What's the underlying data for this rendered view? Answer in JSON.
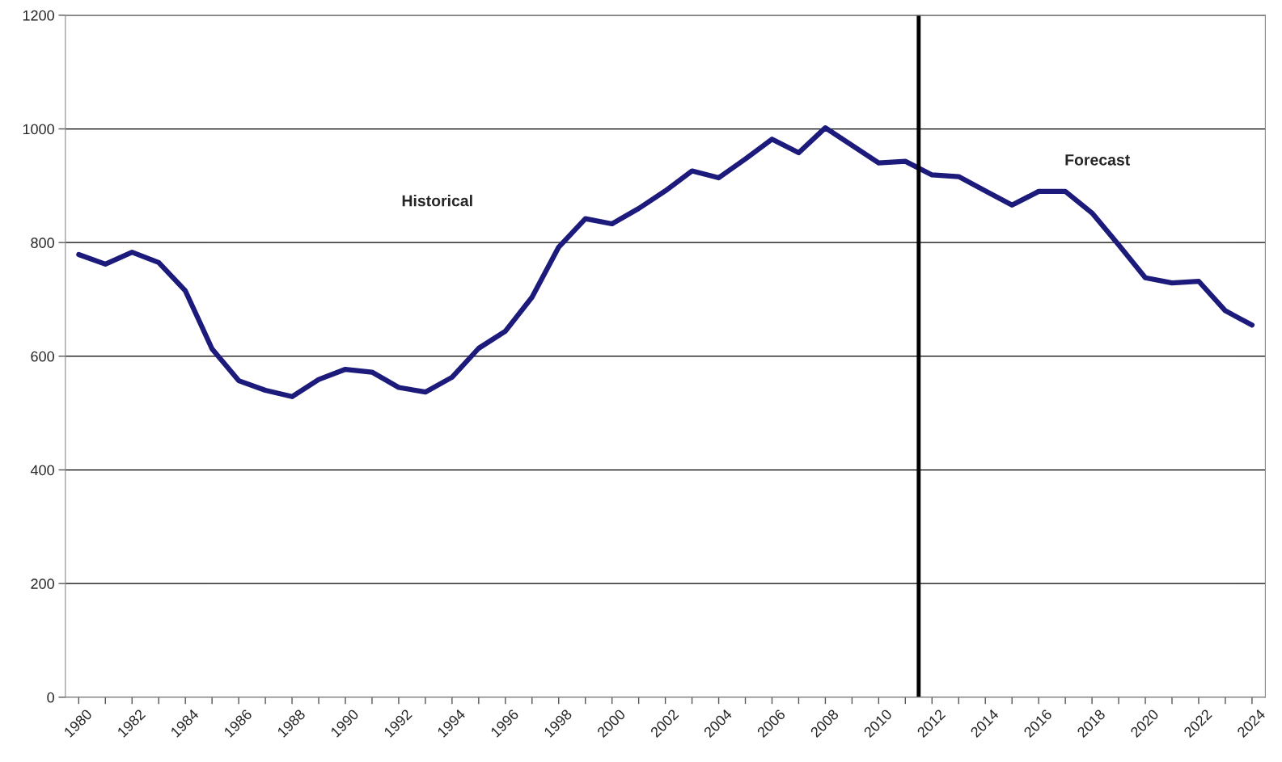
{
  "chart_data": {
    "type": "line",
    "x": [
      1980,
      1981,
      1982,
      1983,
      1984,
      1985,
      1986,
      1987,
      1988,
      1989,
      1990,
      1991,
      1992,
      1993,
      1994,
      1995,
      1996,
      1997,
      1998,
      1999,
      2000,
      2001,
      2002,
      2003,
      2004,
      2005,
      2006,
      2007,
      2008,
      2009,
      2010,
      2011,
      2012,
      2013,
      2014,
      2015,
      2016,
      2017,
      2018,
      2019,
      2020,
      2021,
      2022,
      2023,
      2024
    ],
    "series": [
      {
        "color": "#1c1a7a",
        "values": [
          779,
          762,
          783,
          765,
          715,
          613,
          557,
          540,
          529,
          559,
          577,
          572,
          545,
          537,
          563,
          614,
          644,
          704,
          792,
          842,
          833,
          860,
          891,
          926,
          914,
          947,
          982,
          958,
          1002,
          971,
          940,
          943,
          919,
          916,
          891,
          866,
          890,
          890,
          852,
          796,
          738,
          729,
          732,
          680,
          655
        ]
      }
    ],
    "xlim": [
      1979.5,
      2024.5
    ],
    "xticks": [
      1980,
      {
        "value": 1981,
        "label": null
      },
      1982,
      {
        "value": 1983,
        "label": null
      },
      1984,
      {
        "value": 1985,
        "label": null
      },
      1986,
      {
        "value": 1987,
        "label": null
      },
      1988,
      {
        "value": 1989,
        "label": null
      },
      1990,
      {
        "value": 1991,
        "label": null
      },
      1992,
      {
        "value": 1993,
        "label": null
      },
      1994,
      {
        "value": 1995,
        "label": null
      },
      1996,
      {
        "value": 1997,
        "label": null
      },
      1998,
      {
        "value": 1999,
        "label": null
      },
      2000,
      {
        "value": 2001,
        "label": null
      },
      2002,
      {
        "value": 2003,
        "label": null
      },
      2004,
      {
        "value": 2005,
        "label": null
      },
      2006,
      {
        "value": 2007,
        "label": null
      },
      2008,
      {
        "value": 2009,
        "label": null
      },
      2010,
      {
        "value": 2011,
        "label": null
      },
      2012,
      {
        "value": 2013,
        "label": null
      },
      2014,
      {
        "value": 2015,
        "label": null
      },
      2016,
      {
        "value": 2017,
        "label": null
      },
      2018,
      {
        "value": 2019,
        "label": null
      },
      2020,
      {
        "value": 2021,
        "label": null
      },
      2022,
      {
        "value": 2023,
        "label": null
      },
      2024
    ],
    "ylim": [
      0,
      1200
    ],
    "yticks": [
      0,
      200,
      400,
      600,
      800,
      1000,
      1200
    ],
    "grid": "y",
    "legend": false,
    "marker": "none",
    "line_style": "solid",
    "ref_lines": [
      {
        "axis": "x",
        "value": 2011.5,
        "color": "#000000",
        "line_style": "solid"
      }
    ],
    "annotations": [
      "Historical",
      "Forecast"
    ]
  }
}
